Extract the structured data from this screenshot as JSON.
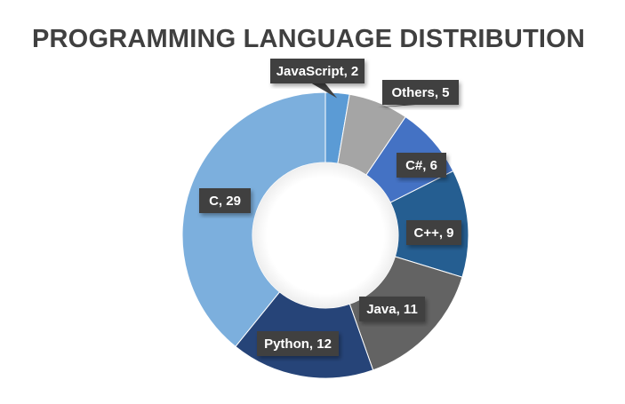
{
  "chart_data": {
    "type": "pie",
    "subtype": "donut",
    "title": "PROGRAMMING LANGUAGE DISTRIBUTION",
    "categories": [
      "JavaScript",
      "Others",
      "C#",
      "C++",
      "Java",
      "Python",
      "C"
    ],
    "values": [
      2,
      5,
      6,
      9,
      11,
      12,
      29
    ],
    "labels": [
      "JavaScript, 2",
      "Others, 5",
      "C#, 6",
      "C++, 9",
      "Java, 11",
      "Python, 12",
      "C, 29"
    ],
    "colors": [
      "#5b9bd5",
      "#a5a5a5",
      "#4472c4",
      "#255e91",
      "#636363",
      "#264478",
      "#7cafdd"
    ],
    "legend": "none",
    "data_labels": "category, value"
  }
}
